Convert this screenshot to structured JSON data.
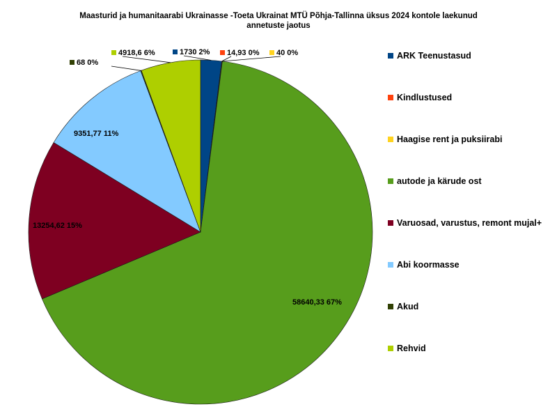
{
  "chart_data": {
    "type": "pie",
    "title_lines": [
      "Maasturid ja humanitaarabi Ukrainasse -Toeta Ukrainat MTÜ Põhja-Tallinna üksus 2024 kontole laekunud",
      "annetuste jaotus"
    ],
    "legend_position": "right",
    "slices": [
      {
        "name": "ARK Teenustasud",
        "value": 1730,
        "label": "1730 2%",
        "color": "#004586"
      },
      {
        "name": "Kindlustused",
        "value": 14.93,
        "label": "14,93 0%",
        "color": "#ff420e"
      },
      {
        "name": "Haagise rent ja puksiirabi",
        "value": 40,
        "label": "40 0%",
        "color": "#ffd320"
      },
      {
        "name": "autode ja kärude ost",
        "value": 58640.33,
        "label": "58640,33 67%",
        "color": "#579d1c"
      },
      {
        "name": "Varuosad, varustus, remont mujal+",
        "value": 13254.62,
        "label": "13254,62 15%",
        "color": "#7e0021"
      },
      {
        "name": "Abi koormasse",
        "value": 9351.77,
        "label": "9351,77 11%",
        "color": "#83caff"
      },
      {
        "name": "Akud",
        "value": 68,
        "label": "68 0%",
        "color": "#314004"
      },
      {
        "name": "Rehvid",
        "value": 4918.6,
        "label": "4918,6 6%",
        "color": "#aecf00"
      }
    ]
  }
}
